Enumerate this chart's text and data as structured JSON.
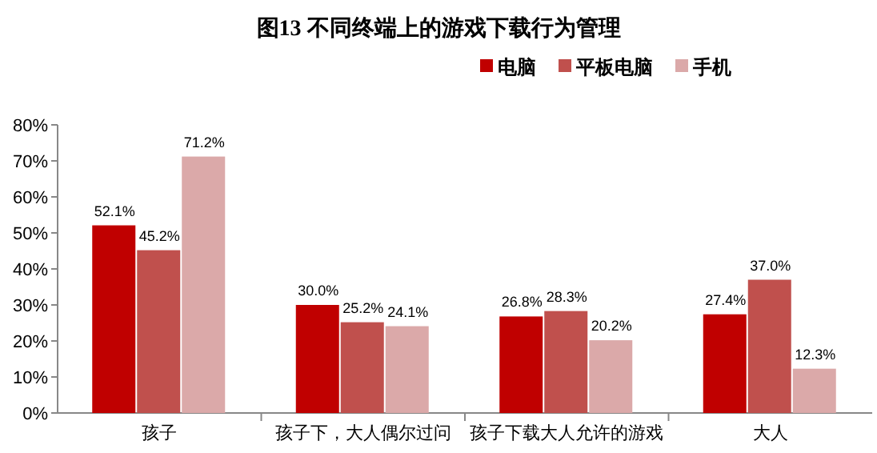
{
  "chart_data": {
    "type": "bar",
    "title": "图13  不同终端上的游戏下载行为管理",
    "categories": [
      "孩子",
      "孩子下，大人偶尔过问",
      "孩子下载大人允许的游戏",
      "大人"
    ],
    "series": [
      {
        "name": "电脑",
        "color": "#c00000",
        "values": [
          52.1,
          30.0,
          26.8,
          27.4
        ],
        "value_labels": [
          "52.1%",
          "30.0%",
          "26.8%",
          "27.4%"
        ]
      },
      {
        "name": "平板电脑",
        "color": "#c0504d",
        "values": [
          45.2,
          25.2,
          28.3,
          37.0
        ],
        "value_labels": [
          "45.2%",
          "25.2%",
          "28.3%",
          "37.0%"
        ]
      },
      {
        "name": "手机",
        "color": "#dba9a9",
        "values": [
          71.2,
          24.1,
          20.2,
          12.3
        ],
        "value_labels": [
          "71.2%",
          "24.1%",
          "20.2%",
          "12.3%"
        ]
      }
    ],
    "ylim": [
      0,
      80
    ],
    "yticks": [
      {
        "value": 0,
        "label": "0%"
      },
      {
        "value": 10,
        "label": "10%"
      },
      {
        "value": 20,
        "label": "20%"
      },
      {
        "value": 30,
        "label": "30%"
      },
      {
        "value": 40,
        "label": "40%"
      },
      {
        "value": 50,
        "label": "50%"
      },
      {
        "value": 60,
        "label": "60%"
      },
      {
        "value": 70,
        "label": "70%"
      },
      {
        "value": 80,
        "label": "80%"
      }
    ],
    "legend": "top"
  }
}
